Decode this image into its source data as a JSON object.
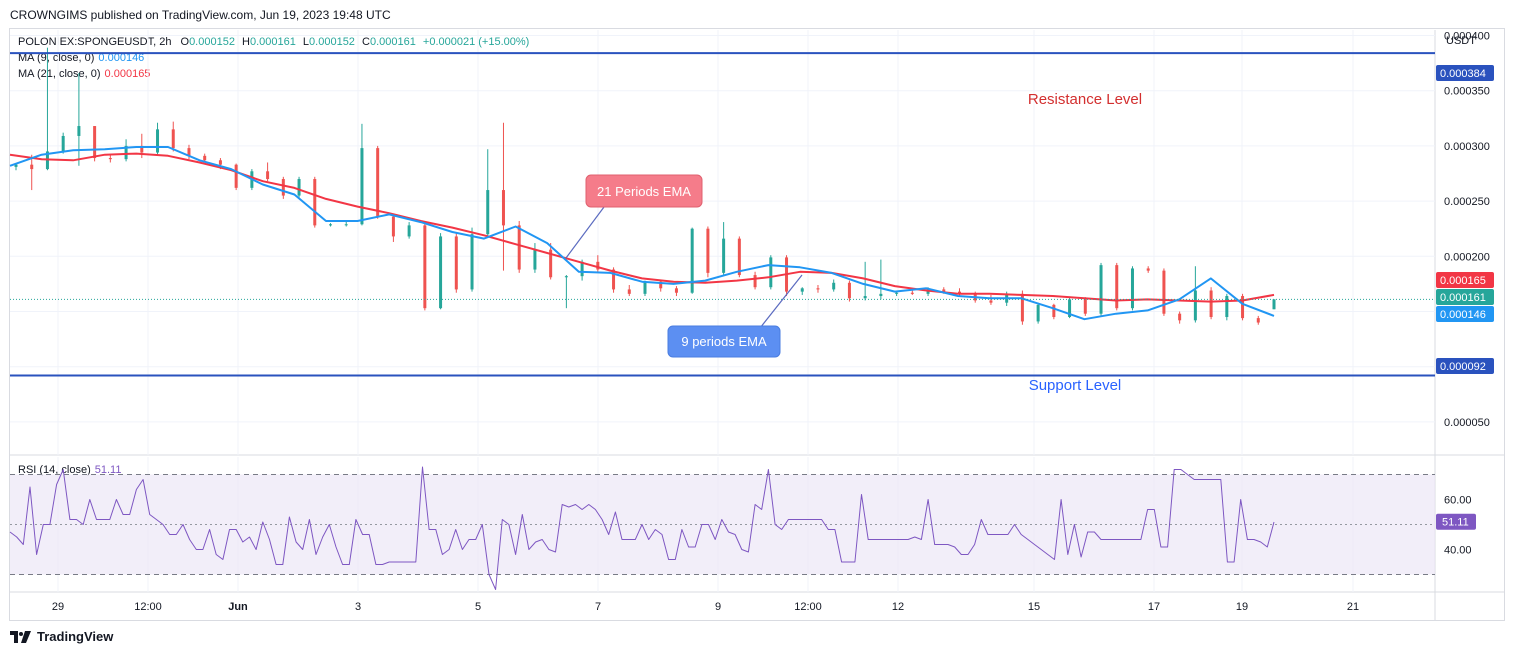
{
  "header": {
    "publisher_line": "CROWNGIMS published on TradingView.com, Jun 19, 2023 19:48 UTC"
  },
  "footer": {
    "brand": "TradingView"
  },
  "legend": {
    "symbol_line": "POLONIEX:SPONGEUSDT, 2h",
    "ohlc": {
      "o_label": "O",
      "o": "0.000152",
      "h_label": "H",
      "h": "0.000161",
      "l_label": "L",
      "l": "0.000152",
      "c_label": "C",
      "c": "0.000161",
      "change": "+0.000021 (+15.00%)"
    },
    "ma9": {
      "label": "MA (9, close, 0)",
      "value": "0.000146"
    },
    "ma21": {
      "label": "MA (21, close, 0)",
      "value": "0.000165"
    },
    "rsi": {
      "label": "RSI (14, close)",
      "value": "51.11"
    }
  },
  "colors": {
    "up": "#26a69a",
    "down": "#ef5350",
    "ma9": "#2196f3",
    "ma21": "#f23645",
    "level_line": "#2a52be",
    "resistance_text": "#d32f2f",
    "support_text": "#2962ff",
    "rsi_line": "#7e57c2",
    "rsi_fill": "#ede7f6"
  },
  "annotations": {
    "resistance": "Resistance Level",
    "support": "Support Level",
    "ema21_callout": "21 Periods EMA",
    "ema9_callout": "9 periods EMA"
  },
  "chart_data": [
    {
      "type": "candlestick",
      "title": "POLONIEX:SPONGEUSDT, 2h",
      "y_unit": "USDT",
      "ylim": [
        2e-05,
        0.000405
      ],
      "y_ticks": [
        "0.000050",
        "0.000100",
        "0.000150",
        "0.000200",
        "0.000250",
        "0.000300",
        "0.000350",
        "0.000400"
      ],
      "x_ticks": [
        "29",
        "12:00",
        "Jun",
        "3",
        "5",
        "7",
        "9",
        "12:00",
        "12",
        "15",
        "17",
        "19",
        "21"
      ],
      "price_labels": {
        "resistance": "0.000384",
        "support": "0.000092",
        "ma21": "0.000165",
        "last": "0.000161",
        "ma9": "0.000146"
      },
      "levels": {
        "resistance": 0.000384,
        "support": 9.2e-05,
        "last": 0.000161
      },
      "series": [
        {
          "name": "MA (21, close, 0)",
          "values": [
            0.000292,
            0.000288,
            0.000287,
            0.000292,
            0.000293,
            0.000291,
            0.000285,
            0.000278,
            0.000268,
            0.000262,
            0.000252,
            0.000245,
            0.000239,
            0.000232,
            0.000226,
            0.000219,
            0.000211,
            0.000203,
            0.000195,
            0.000187,
            0.00018,
            0.000177,
            0.000176,
            0.000178,
            0.000181,
            0.000186,
            0.000185,
            0.00018,
            0.000173,
            0.000169,
            0.000166,
            0.000166,
            0.000165,
            0.000164,
            0.000162,
            0.00016,
            0.000161,
            0.00016,
            0.000159,
            0.00016,
            0.000165
          ]
        },
        {
          "name": "MA (9, close, 0)",
          "values": [
            0.000282,
            0.000292,
            0.000296,
            0.000297,
            0.000299,
            0.000299,
            0.000287,
            0.000279,
            0.000265,
            0.000256,
            0.000232,
            0.000232,
            0.000238,
            0.000231,
            0.000222,
            0.000216,
            0.000227,
            0.000212,
            0.000186,
            0.000185,
            0.000177,
            0.000175,
            0.000178,
            0.000186,
            0.000192,
            0.00019,
            0.000185,
            0.000175,
            0.000168,
            0.000171,
            0.000164,
            0.000162,
            0.000162,
            0.000153,
            0.000143,
            0.000148,
            0.000151,
            0.000161,
            0.00018,
            0.000157,
            0.000146
          ]
        }
      ],
      "candles": [
        [
          0.000281,
          0.000284,
          0.000278,
          0.000283
        ],
        [
          0.000283,
          0.000292,
          0.00026,
          0.000279
        ],
        [
          0.000279,
          0.000389,
          0.000278,
          0.000295
        ],
        [
          0.000295,
          0.000312,
          0.000293,
          0.000309
        ],
        [
          0.000309,
          0.000366,
          0.000282,
          0.000318
        ],
        [
          0.000318,
          0.000318,
          0.000286,
          0.000289
        ],
        [
          0.000289,
          0.000292,
          0.000285,
          0.000288
        ],
        [
          0.000288,
          0.000306,
          0.000286,
          0.0003
        ],
        [
          0.0003,
          0.000311,
          0.000289,
          0.000294
        ],
        [
          0.000294,
          0.000321,
          0.000292,
          0.000315
        ],
        [
          0.000315,
          0.000322,
          0.000295,
          0.000298
        ],
        [
          0.000298,
          0.000301,
          0.000288,
          0.000291
        ],
        [
          0.000291,
          0.000293,
          0.000285,
          0.000287
        ],
        [
          0.000287,
          0.000289,
          0.000279,
          0.000283
        ],
        [
          0.000283,
          0.000284,
          0.00026,
          0.000262
        ],
        [
          0.000262,
          0.000279,
          0.00026,
          0.000277
        ],
        [
          0.000277,
          0.000285,
          0.000268,
          0.00027
        ],
        [
          0.00027,
          0.000272,
          0.000252,
          0.000255
        ],
        [
          0.000255,
          0.000272,
          0.000253,
          0.00027
        ],
        [
          0.00027,
          0.000272,
          0.000226,
          0.000228
        ],
        [
          0.000228,
          0.00023,
          0.000227,
          0.000229
        ],
        [
          0.000229,
          0.000232,
          0.000227,
          0.000229
        ],
        [
          0.000229,
          0.00032,
          0.000228,
          0.000298
        ],
        [
          0.000298,
          0.0003,
          0.000234,
          0.000236
        ],
        [
          0.000236,
          0.000238,
          0.000213,
          0.000218
        ],
        [
          0.000218,
          0.000231,
          0.000216,
          0.000228
        ],
        [
          0.000228,
          0.00023,
          0.000151,
          0.000153
        ],
        [
          0.000153,
          0.000221,
          0.000152,
          0.000218
        ],
        [
          0.000218,
          0.000222,
          0.000167,
          0.00017
        ],
        [
          0.00017,
          0.000226,
          0.000168,
          0.00022
        ],
        [
          0.00022,
          0.000297,
          0.000217,
          0.00026
        ],
        [
          0.00026,
          0.000321,
          0.000187,
          0.000228
        ],
        [
          0.000228,
          0.000232,
          0.000185,
          0.000188
        ],
        [
          0.000188,
          0.000212,
          0.000185,
          0.000206
        ],
        [
          0.000206,
          0.000212,
          0.000179,
          0.000181
        ],
        [
          0.000181,
          0.000183,
          0.000153,
          0.000182
        ],
        [
          0.000182,
          0.000197,
          0.000178,
          0.000195
        ],
        [
          0.000195,
          0.000201,
          0.000186,
          0.000188
        ],
        [
          0.000188,
          0.00019,
          0.000167,
          0.00017
        ],
        [
          0.00017,
          0.000174,
          0.000164,
          0.000166
        ],
        [
          0.000166,
          0.000178,
          0.000164,
          0.000177
        ],
        [
          0.000177,
          0.000179,
          0.000168,
          0.000171
        ],
        [
          0.000171,
          0.000173,
          0.000164,
          0.000167
        ],
        [
          0.000167,
          0.000226,
          0.000166,
          0.000225
        ],
        [
          0.000225,
          0.000227,
          0.000181,
          0.000185
        ],
        [
          0.000185,
          0.000231,
          0.000183,
          0.000216
        ],
        [
          0.000216,
          0.000218,
          0.000181,
          0.000183
        ],
        [
          0.000183,
          0.000186,
          0.00017,
          0.000172
        ],
        [
          0.000172,
          0.000201,
          0.00017,
          0.000199
        ],
        [
          0.000199,
          0.000201,
          0.000164,
          0.000168
        ],
        [
          0.000168,
          0.000172,
          0.000165,
          0.000171
        ],
        [
          0.000171,
          0.000174,
          0.000167,
          0.00017
        ],
        [
          0.00017,
          0.000179,
          0.000168,
          0.000176
        ],
        [
          0.000176,
          0.000178,
          0.000159,
          0.000162
        ],
        [
          0.000162,
          0.000195,
          0.00016,
          0.000164
        ],
        [
          0.000164,
          0.000197,
          0.000161,
          0.000166
        ],
        [
          0.000166,
          0.000169,
          0.000164,
          0.000167
        ],
        [
          0.000167,
          0.000169,
          0.000165,
          0.000166
        ],
        [
          0.000166,
          0.000172,
          0.000164,
          0.00017
        ],
        [
          0.00017,
          0.000172,
          0.000166,
          0.000168
        ],
        [
          0.000168,
          0.000171,
          0.000164,
          0.000166
        ],
        [
          0.000166,
          0.000168,
          0.000158,
          0.00016
        ],
        [
          0.00016,
          0.000165,
          0.000156,
          0.000158
        ],
        [
          0.000158,
          0.000168,
          0.000155,
          0.000166
        ],
        [
          0.000166,
          0.000169,
          0.000138,
          0.000141
        ],
        [
          0.000141,
          0.000158,
          0.000139,
          0.000156
        ],
        [
          0.000156,
          0.000157,
          0.000143,
          0.000145
        ],
        [
          0.000145,
          0.000163,
          0.000144,
          0.000161
        ],
        [
          0.000161,
          0.000163,
          0.000146,
          0.000148
        ],
        [
          0.000148,
          0.000194,
          0.000146,
          0.000192
        ],
        [
          0.000192,
          0.000194,
          0.000151,
          0.000153
        ],
        [
          0.000153,
          0.000191,
          0.000151,
          0.000189
        ],
        [
          0.000189,
          0.000191,
          0.000185,
          0.000187
        ],
        [
          0.000187,
          0.000189,
          0.000146,
          0.000148
        ],
        [
          0.000148,
          0.00015,
          0.000139,
          0.000142
        ],
        [
          0.000142,
          0.000191,
          0.00014,
          0.000169
        ],
        [
          0.000169,
          0.000172,
          0.000143,
          0.000145
        ],
        [
          0.000145,
          0.000166,
          0.000142,
          0.000164
        ],
        [
          0.000164,
          0.000166,
          0.000142,
          0.000144
        ],
        [
          0.000144,
          0.000146,
          0.000138,
          0.00014
        ],
        [
          0.000152,
          0.000161,
          0.000152,
          0.000161
        ]
      ]
    },
    {
      "type": "line",
      "title": "RSI (14, close)",
      "ylim": [
        23,
        77
      ],
      "y_ticks": [
        "40.00",
        "60.00"
      ],
      "bands": {
        "upper": 70,
        "middle": 50,
        "lower": 30
      },
      "last_label": "51.11",
      "series": [
        {
          "name": "RSI (14, close)",
          "values": [
            47,
            45,
            42,
            65,
            38,
            50,
            50,
            66,
            72,
            52,
            52,
            50,
            60,
            52,
            52,
            52,
            60,
            54,
            54,
            64,
            68,
            54,
            52,
            50,
            46,
            46,
            50,
            44,
            40,
            40,
            48,
            38,
            36,
            48,
            48,
            43,
            45,
            40,
            51,
            44,
            34,
            34,
            53,
            43,
            40,
            52,
            38,
            45,
            50,
            41,
            34,
            34,
            52,
            46,
            46,
            34,
            34,
            35,
            35,
            35,
            35,
            35,
            73,
            48,
            48,
            38,
            40,
            48,
            40,
            44,
            44,
            50,
            30,
            24,
            52,
            50,
            38,
            54,
            40,
            43,
            44,
            40,
            39,
            58,
            57,
            58,
            56,
            58,
            56,
            52,
            46,
            55,
            44,
            44,
            44,
            50,
            44,
            48,
            46,
            36,
            36,
            48,
            41,
            41,
            50,
            50,
            44,
            52,
            47,
            46,
            40,
            39,
            58,
            56,
            72,
            50,
            48,
            52,
            52,
            52,
            52,
            52,
            52,
            48,
            48,
            35,
            35,
            35,
            62,
            44,
            44,
            44,
            44,
            44,
            44,
            44,
            45,
            44,
            60,
            42,
            42,
            42,
            41,
            38,
            38,
            42,
            52,
            46,
            46,
            46,
            46,
            50,
            46,
            44,
            42,
            40,
            38,
            36,
            60,
            38,
            50,
            37,
            47,
            47,
            44,
            44,
            44,
            44,
            44,
            44,
            44,
            56,
            56,
            41,
            41,
            72,
            72,
            70,
            68,
            68,
            68,
            68,
            68,
            35,
            35,
            60,
            44,
            44,
            43,
            41,
            51
          ]
        }
      ]
    }
  ]
}
